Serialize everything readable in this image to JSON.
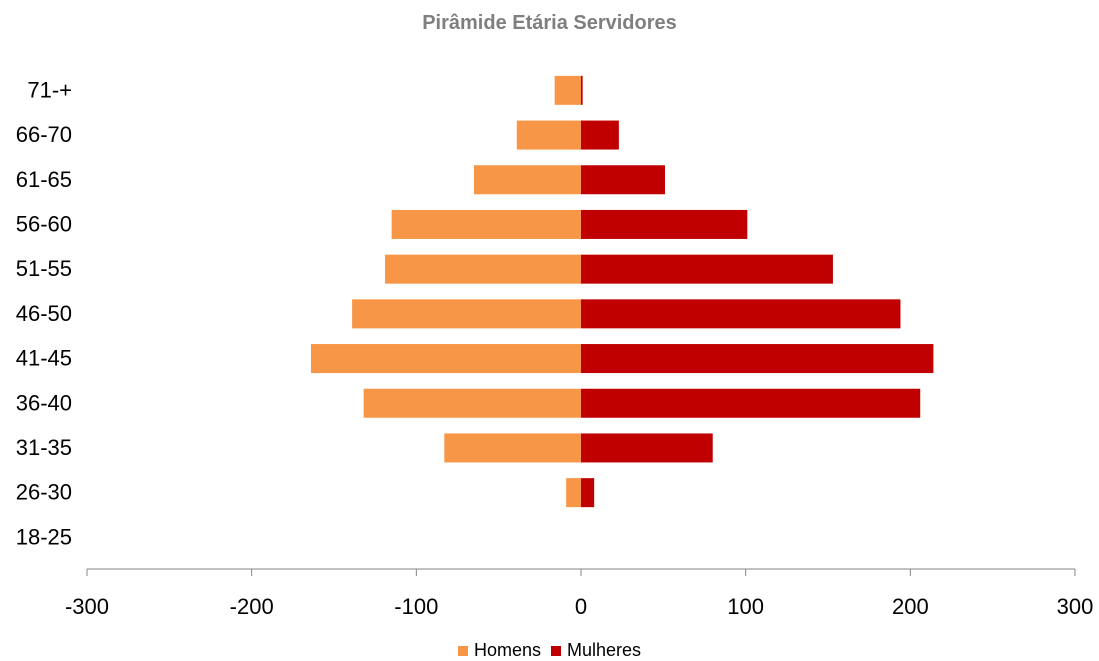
{
  "chart_data": {
    "type": "bar",
    "orientation": "horizontal",
    "stacked": true,
    "title": "Pirâmide Etária Servidores",
    "categories": [
      "71-+",
      "66-70",
      "61-65",
      "56-60",
      "51-55",
      "46-50",
      "41-45",
      "36-40",
      "31-35",
      "26-30",
      "18-25"
    ],
    "series": [
      {
        "name": "Homens",
        "color": "#F79646",
        "values": [
          -16,
          -39,
          -65,
          -115,
          -119,
          -139,
          -164,
          -132,
          -83,
          -9,
          0
        ]
      },
      {
        "name": "Mulheres",
        "color": "#C00000",
        "values": [
          1,
          23,
          51,
          101,
          153,
          194,
          214,
          206,
          80,
          8,
          0
        ]
      }
    ],
    "xlim": [
      -300,
      300
    ],
    "xticks": [
      "-300",
      "-200",
      "-100",
      "0",
      "100",
      "200",
      "300"
    ],
    "xlabel": "",
    "ylabel": "",
    "grid": false,
    "legend_position": "bottom"
  }
}
